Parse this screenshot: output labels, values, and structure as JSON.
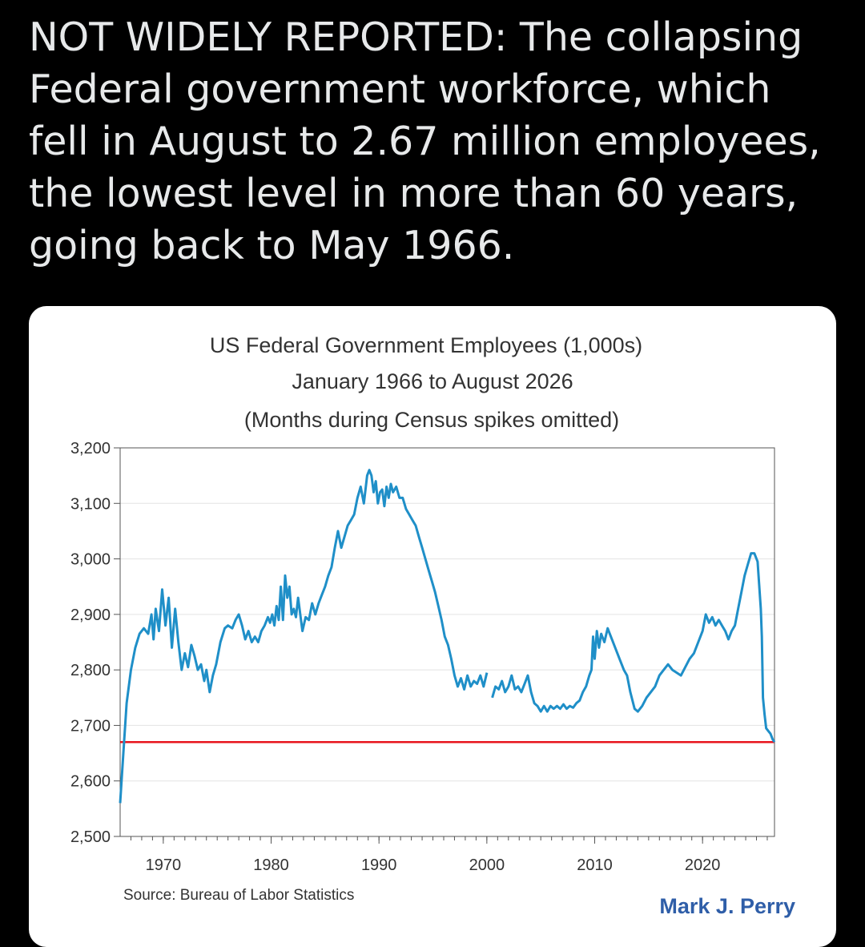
{
  "tweet": {
    "text": "NOT WIDELY REPORTED: The collapsing Federal government workforce, which fell in August to 2.67 million employees, the lowest level in more than 60 years, going back to May 1966."
  },
  "chart_data": {
    "type": "line",
    "title": "US Federal Government Employees (1,000s)",
    "subtitle1": "January 1966 to August 2026",
    "subtitle2": "(Months during Census spikes omitted)",
    "source": "Source: Bureau of Labor Statistics",
    "credit": "Mark J. Perry",
    "xlabel": "",
    "ylabel": "",
    "xlim": [
      1966.0,
      2026.67
    ],
    "ylim": [
      2500,
      3200
    ],
    "y_ticks": [
      "2,500",
      "2,600",
      "2,700",
      "2,800",
      "2,900",
      "3,000",
      "3,100",
      "3,200"
    ],
    "y_tick_values": [
      2500,
      2600,
      2700,
      2800,
      2900,
      3000,
      3100,
      3200
    ],
    "x_ticks": [
      "1970",
      "1980",
      "1990",
      "2000",
      "2010",
      "2020"
    ],
    "x_tick_values": [
      1970,
      1980,
      1990,
      2000,
      2010,
      2020
    ],
    "grid": "horizontal",
    "line_color": "#1f8fc8",
    "reference_line": {
      "value": 2670,
      "color": "#e8141c"
    },
    "series": [
      {
        "segments": [
          [
            [
              1966.0,
              2560
            ],
            [
              1966.3,
              2650
            ],
            [
              1966.6,
              2740
            ],
            [
              1967.0,
              2800
            ],
            [
              1967.4,
              2840
            ],
            [
              1967.8,
              2865
            ],
            [
              1968.2,
              2875
            ],
            [
              1968.6,
              2865
            ],
            [
              1968.9,
              2900
            ],
            [
              1969.1,
              2855
            ],
            [
              1969.3,
              2910
            ],
            [
              1969.6,
              2870
            ],
            [
              1969.9,
              2945
            ],
            [
              1970.2,
              2880
            ],
            [
              1970.5,
              2930
            ],
            [
              1970.8,
              2840
            ],
            [
              1971.1,
              2910
            ],
            [
              1971.4,
              2850
            ],
            [
              1971.7,
              2800
            ],
            [
              1972.0,
              2830
            ],
            [
              1972.3,
              2805
            ],
            [
              1972.6,
              2845
            ],
            [
              1972.9,
              2825
            ],
            [
              1973.2,
              2800
            ],
            [
              1973.5,
              2810
            ],
            [
              1973.8,
              2780
            ],
            [
              1974.0,
              2800
            ],
            [
              1974.3,
              2760
            ],
            [
              1974.6,
              2790
            ],
            [
              1974.9,
              2810
            ],
            [
              1975.3,
              2850
            ],
            [
              1975.7,
              2875
            ],
            [
              1976.0,
              2880
            ],
            [
              1976.4,
              2875
            ],
            [
              1976.7,
              2890
            ],
            [
              1977.0,
              2900
            ],
            [
              1977.3,
              2880
            ],
            [
              1977.6,
              2855
            ],
            [
              1977.9,
              2870
            ],
            [
              1978.2,
              2850
            ],
            [
              1978.5,
              2860
            ],
            [
              1978.8,
              2850
            ],
            [
              1979.1,
              2870
            ],
            [
              1979.4,
              2880
            ],
            [
              1979.7,
              2895
            ],
            [
              1979.9,
              2885
            ],
            [
              1980.1,
              2900
            ],
            [
              1980.3,
              2880
            ],
            [
              1980.5,
              2915
            ],
            [
              1980.7,
              2890
            ],
            [
              1980.9,
              2950
            ],
            [
              1981.1,
              2890
            ],
            [
              1981.3,
              2970
            ],
            [
              1981.5,
              2930
            ],
            [
              1981.7,
              2950
            ],
            [
              1981.9,
              2900
            ],
            [
              1982.1,
              2910
            ],
            [
              1982.3,
              2895
            ],
            [
              1982.5,
              2930
            ],
            [
              1982.7,
              2900
            ],
            [
              1982.9,
              2870
            ],
            [
              1983.2,
              2895
            ],
            [
              1983.5,
              2890
            ],
            [
              1983.8,
              2920
            ],
            [
              1984.1,
              2900
            ],
            [
              1984.4,
              2920
            ],
            [
              1984.7,
              2935
            ],
            [
              1985.0,
              2950
            ],
            [
              1985.3,
              2970
            ],
            [
              1985.6,
              2985
            ],
            [
              1985.9,
              3020
            ],
            [
              1986.2,
              3050
            ],
            [
              1986.5,
              3020
            ],
            [
              1986.8,
              3040
            ],
            [
              1987.1,
              3060
            ],
            [
              1987.4,
              3070
            ],
            [
              1987.7,
              3080
            ],
            [
              1988.0,
              3110
            ],
            [
              1988.3,
              3130
            ],
            [
              1988.6,
              3100
            ],
            [
              1988.9,
              3150
            ],
            [
              1989.1,
              3160
            ],
            [
              1989.3,
              3150
            ],
            [
              1989.5,
              3120
            ],
            [
              1989.7,
              3140
            ],
            [
              1989.9,
              3100
            ],
            [
              1990.1,
              3120
            ],
            [
              1990.3,
              3125
            ],
            [
              1990.5,
              3095
            ],
            [
              1990.7,
              3130
            ],
            [
              1990.9,
              3110
            ],
            [
              1991.1,
              3135
            ],
            [
              1991.3,
              3120
            ],
            [
              1991.6,
              3130
            ],
            [
              1991.9,
              3110
            ],
            [
              1992.2,
              3110
            ],
            [
              1992.5,
              3090
            ],
            [
              1992.8,
              3080
            ],
            [
              1993.1,
              3070
            ],
            [
              1993.4,
              3060
            ],
            [
              1993.7,
              3040
            ],
            [
              1994.0,
              3020
            ],
            [
              1994.3,
              3000
            ],
            [
              1994.6,
              2980
            ],
            [
              1994.9,
              2960
            ],
            [
              1995.2,
              2940
            ],
            [
              1995.5,
              2915
            ],
            [
              1995.8,
              2890
            ],
            [
              1996.1,
              2860
            ],
            [
              1996.4,
              2845
            ],
            [
              1996.7,
              2820
            ],
            [
              1997.0,
              2790
            ],
            [
              1997.3,
              2770
            ],
            [
              1997.6,
              2785
            ],
            [
              1997.9,
              2765
            ],
            [
              1998.2,
              2790
            ],
            [
              1998.5,
              2770
            ],
            [
              1998.8,
              2780
            ],
            [
              1999.1,
              2775
            ],
            [
              1999.4,
              2790
            ],
            [
              1999.7,
              2770
            ],
            [
              2000.0,
              2795
            ]
          ],
          [
            [
              2000.5,
              2750
            ],
            [
              2000.8,
              2770
            ],
            [
              2001.1,
              2765
            ],
            [
              2001.4,
              2780
            ],
            [
              2001.7,
              2760
            ],
            [
              2002.0,
              2770
            ],
            [
              2002.3,
              2790
            ],
            [
              2002.6,
              2765
            ],
            [
              2002.9,
              2770
            ],
            [
              2003.2,
              2760
            ],
            [
              2003.5,
              2775
            ],
            [
              2003.8,
              2790
            ],
            [
              2004.1,
              2760
            ],
            [
              2004.4,
              2740
            ],
            [
              2004.7,
              2735
            ],
            [
              2005.0,
              2725
            ],
            [
              2005.3,
              2735
            ],
            [
              2005.6,
              2725
            ],
            [
              2005.9,
              2735
            ],
            [
              2006.2,
              2730
            ],
            [
              2006.5,
              2735
            ],
            [
              2006.8,
              2730
            ],
            [
              2007.1,
              2738
            ],
            [
              2007.4,
              2730
            ],
            [
              2007.7,
              2735
            ],
            [
              2008.0,
              2732
            ],
            [
              2008.3,
              2740
            ],
            [
              2008.6,
              2745
            ],
            [
              2008.9,
              2760
            ],
            [
              2009.2,
              2770
            ],
            [
              2009.5,
              2790
            ],
            [
              2009.7,
              2800
            ],
            [
              2009.85,
              2860
            ],
            [
              2010.0,
              2820
            ],
            [
              2010.2,
              2870
            ],
            [
              2010.4,
              2840
            ],
            [
              2010.6,
              2865
            ],
            [
              2010.9,
              2850
            ],
            [
              2011.2,
              2875
            ],
            [
              2011.5,
              2860
            ],
            [
              2011.9,
              2840
            ],
            [
              2012.3,
              2820
            ],
            [
              2012.7,
              2800
            ],
            [
              2013.0,
              2790
            ],
            [
              2013.3,
              2760
            ],
            [
              2013.7,
              2730
            ],
            [
              2014.0,
              2725
            ],
            [
              2014.4,
              2735
            ],
            [
              2014.8,
              2750
            ],
            [
              2015.2,
              2760
            ],
            [
              2015.6,
              2770
            ],
            [
              2016.0,
              2790
            ],
            [
              2016.4,
              2800
            ],
            [
              2016.8,
              2810
            ],
            [
              2017.2,
              2800
            ],
            [
              2017.6,
              2795
            ],
            [
              2018.0,
              2790
            ],
            [
              2018.4,
              2805
            ],
            [
              2018.8,
              2820
            ],
            [
              2019.2,
              2830
            ],
            [
              2019.6,
              2850
            ],
            [
              2020.0,
              2870
            ],
            [
              2020.3,
              2900
            ],
            [
              2020.6,
              2885
            ],
            [
              2020.9,
              2895
            ],
            [
              2021.2,
              2880
            ],
            [
              2021.5,
              2890
            ],
            [
              2021.8,
              2880
            ],
            [
              2022.1,
              2870
            ],
            [
              2022.4,
              2855
            ],
            [
              2022.7,
              2870
            ],
            [
              2023.0,
              2880
            ],
            [
              2023.3,
              2910
            ],
            [
              2023.6,
              2940
            ],
            [
              2023.9,
              2970
            ],
            [
              2024.2,
              2990
            ],
            [
              2024.5,
              3010
            ],
            [
              2024.8,
              3010
            ],
            [
              2025.1,
              2995
            ],
            [
              2025.4,
              2910
            ],
            [
              2025.5,
              2860
            ],
            [
              2025.6,
              2750
            ],
            [
              2025.75,
              2720
            ],
            [
              2025.9,
              2695
            ],
            [
              2026.1,
              2690
            ],
            [
              2026.3,
              2685
            ],
            [
              2026.5,
              2675
            ],
            [
              2026.67,
              2670
            ]
          ]
        ]
      }
    ]
  }
}
